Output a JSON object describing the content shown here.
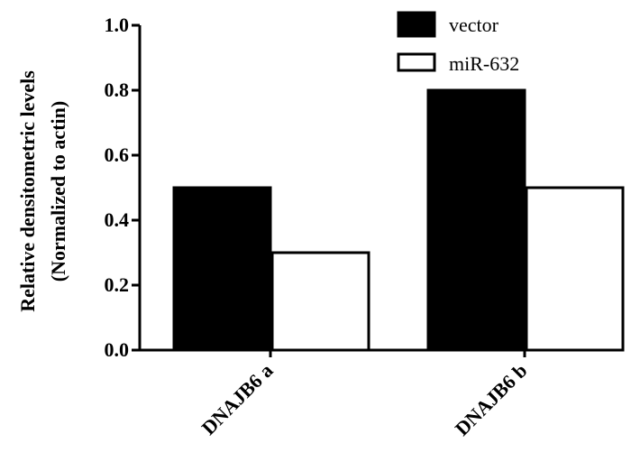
{
  "chart_data": {
    "type": "bar",
    "categories": [
      "DNAJB6 a",
      "DNAJB6 b"
    ],
    "series": [
      {
        "name": "vector",
        "values": [
          0.5,
          0.8
        ],
        "color": "#000000"
      },
      {
        "name": "miR-632",
        "values": [
          0.3,
          0.5
        ],
        "color": "#ffffff"
      }
    ],
    "ylabel_line1": "Relative densitometric levels",
    "ylabel_line2": "(Normalized to actin)",
    "ylim": [
      0,
      1.0
    ],
    "yticks": [
      "0.0",
      "0.2",
      "0.4",
      "0.6",
      "0.8",
      "1.0"
    ],
    "grid": false,
    "legend_position": "top-right"
  }
}
